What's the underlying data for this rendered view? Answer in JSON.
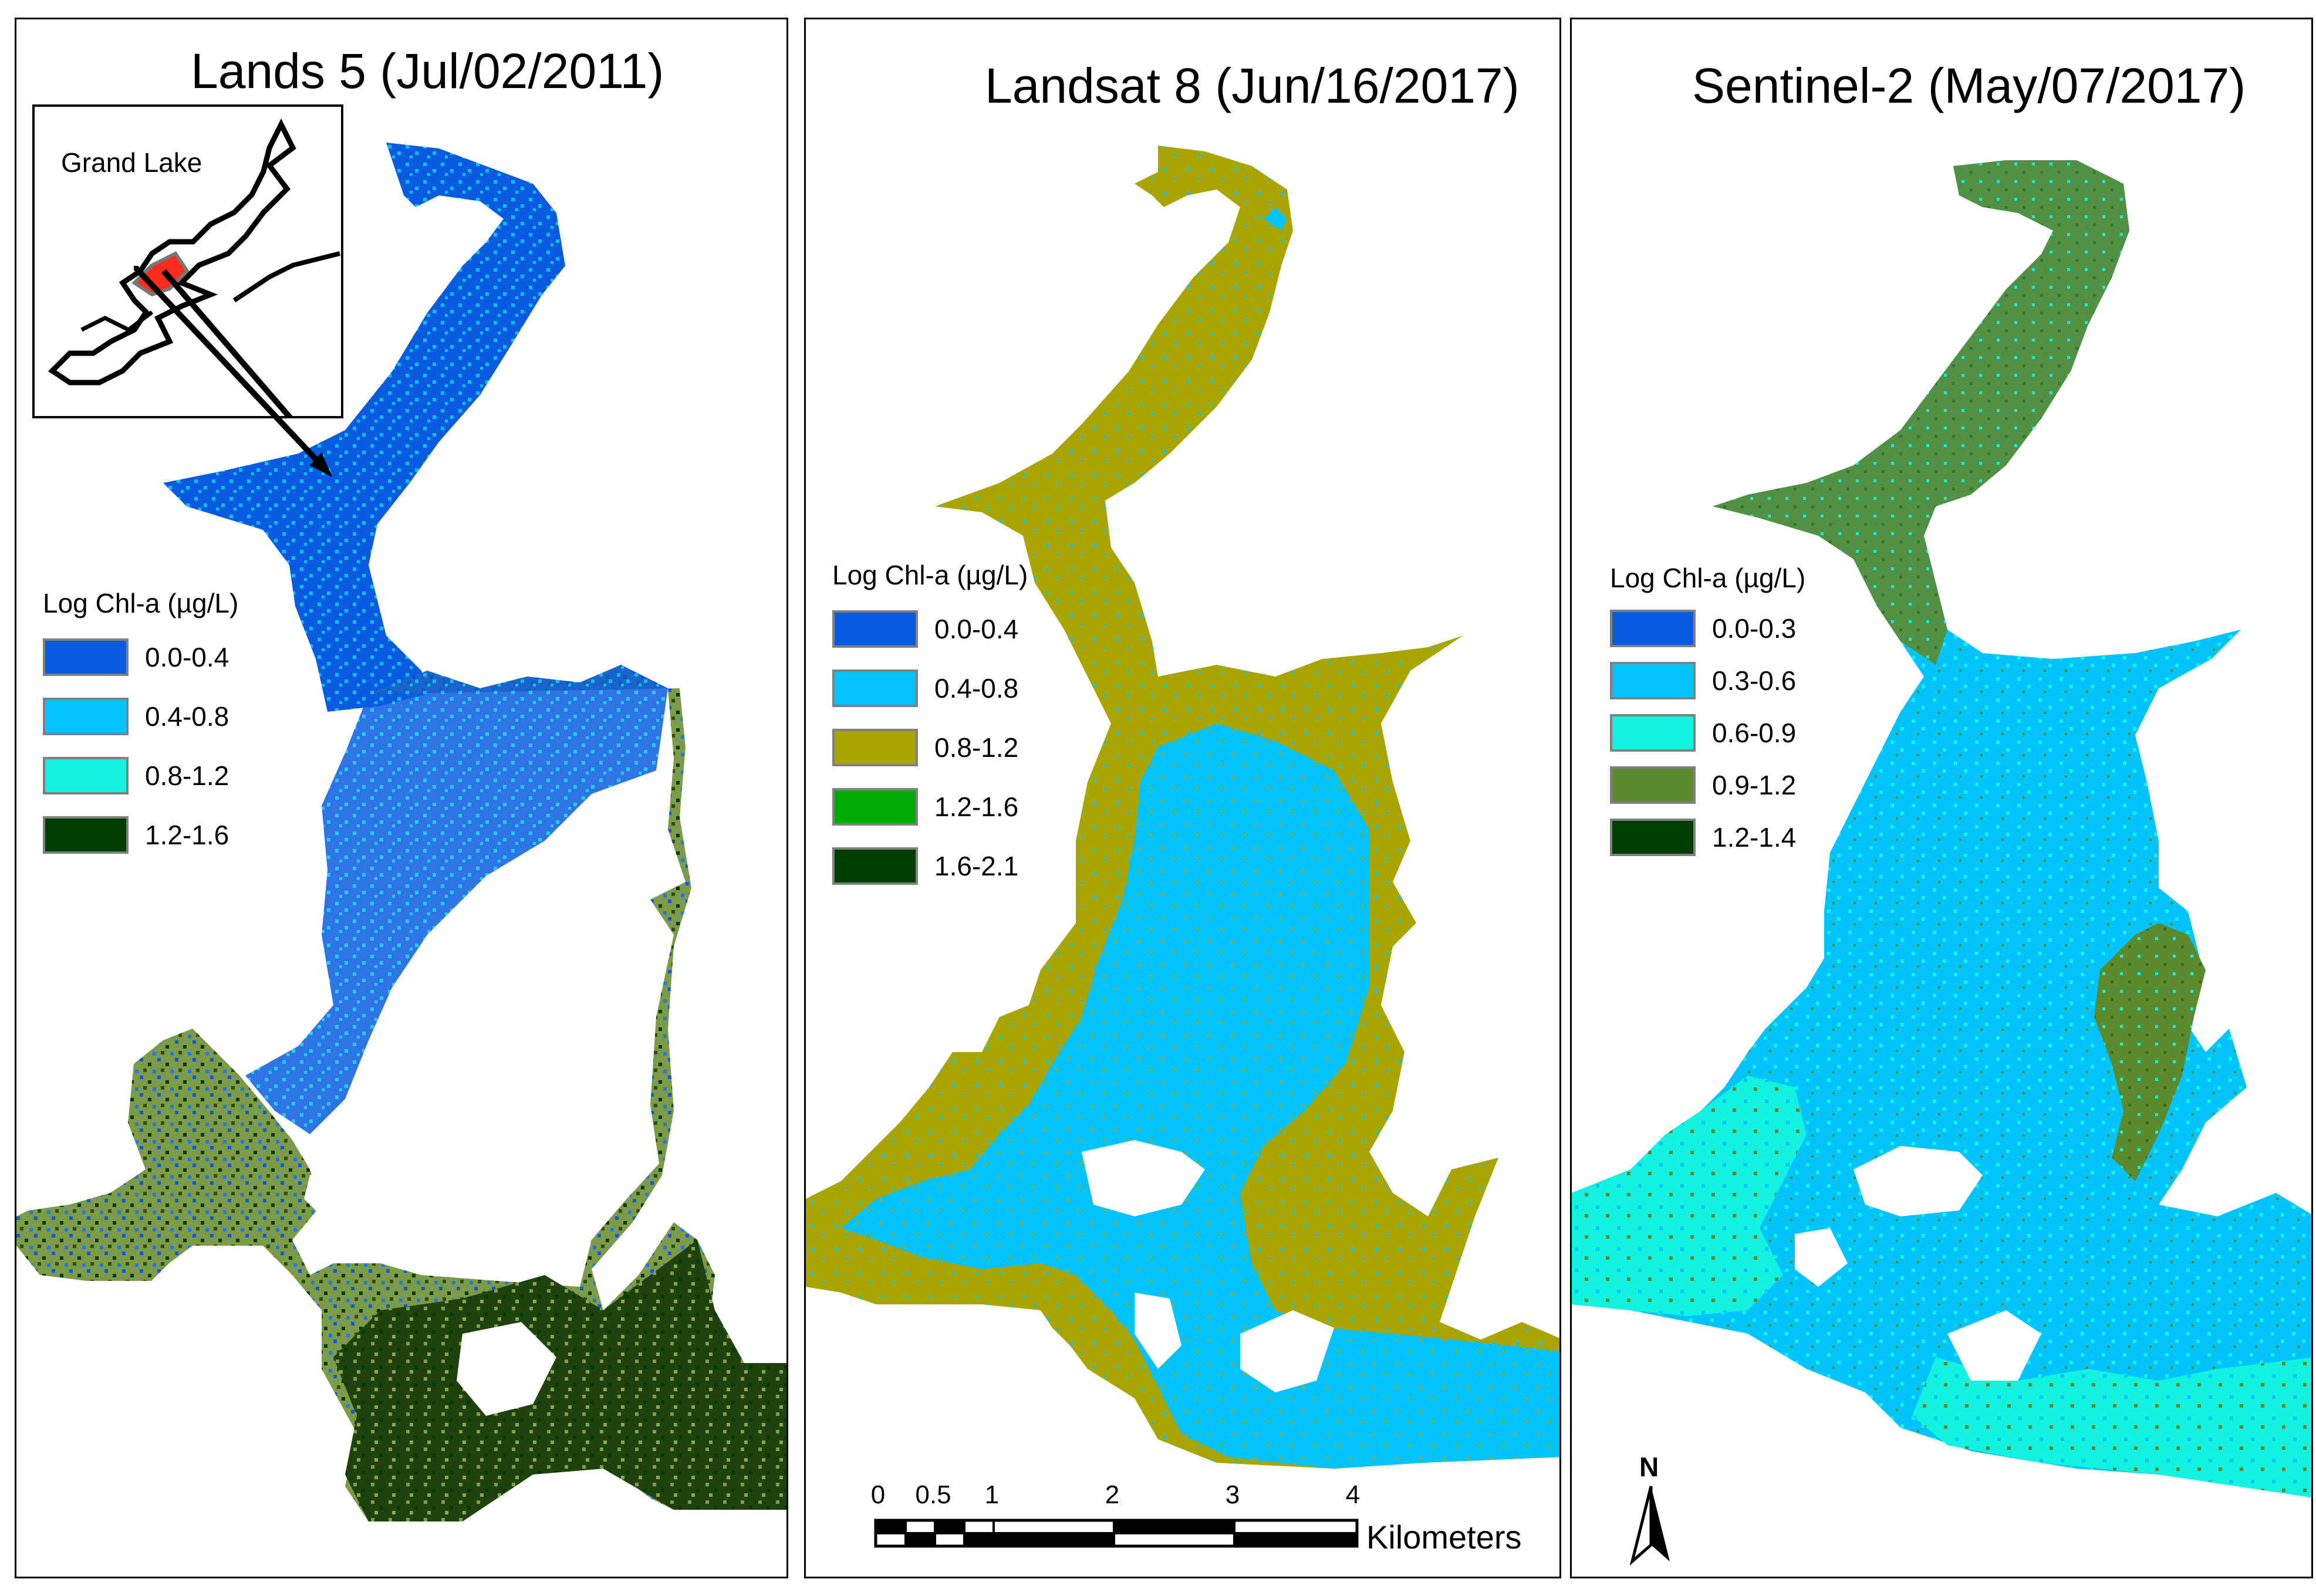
{
  "colors": {
    "c_0_0_0_4": "#0a5be0",
    "c_0_4_0_8": "#00c3ff",
    "c_0_8_1_2_teal": "#11f2e0",
    "c_0_8_1_2_olive": "#a8a400",
    "c_1_2_1_6_green": "#00aa00",
    "c_dark_green": "#003d00",
    "c_olive_green": "#5c8a2e",
    "land": "#ffffff",
    "inset_highlight": "#ff2b1c"
  },
  "panels": [
    {
      "title": "Lands 5 (Jul/02/2011)",
      "legend": {
        "title": "Log Chl-a (µg/L)",
        "items": [
          {
            "label": "0.0-0.4",
            "color": "#0a5be0"
          },
          {
            "label": "0.4-0.8",
            "color": "#00c3ff"
          },
          {
            "label": "0.8-1.2",
            "color": "#11f2e0"
          },
          {
            "label": "1.2-1.6",
            "color": "#003d00"
          }
        ]
      },
      "inset": {
        "label": "Grand Lake"
      }
    },
    {
      "title": "Landsat 8 (Jun/16/2017)",
      "legend": {
        "title": "Log Chl-a (µg/L)",
        "items": [
          {
            "label": "0.0-0.4",
            "color": "#0a5be0"
          },
          {
            "label": "0.4-0.8",
            "color": "#00c3ff"
          },
          {
            "label": "0.8-1.2",
            "color": "#a8a400"
          },
          {
            "label": "1.2-1.6",
            "color": "#00aa00"
          },
          {
            "label": "1.6-2.1",
            "color": "#003d00"
          }
        ]
      },
      "scalebar": {
        "ticks": [
          "0",
          "0.5",
          "1",
          "2",
          "3",
          "4"
        ],
        "unit": "Kilometers"
      }
    },
    {
      "title": "Sentinel-2 (May/07/2017)",
      "legend": {
        "title": "Log Chl-a (µg/L)",
        "items": [
          {
            "label": "0.0-0.3",
            "color": "#0a5be0"
          },
          {
            "label": "0.3-0.6",
            "color": "#00c3ff"
          },
          {
            "label": "0.6-0.9",
            "color": "#11f2e0"
          },
          {
            "label": "0.9-1.2",
            "color": "#5c8a2e"
          },
          {
            "label": "1.2-1.4",
            "color": "#003d00"
          }
        ]
      },
      "north_arrow": {
        "label": "N"
      }
    }
  ]
}
